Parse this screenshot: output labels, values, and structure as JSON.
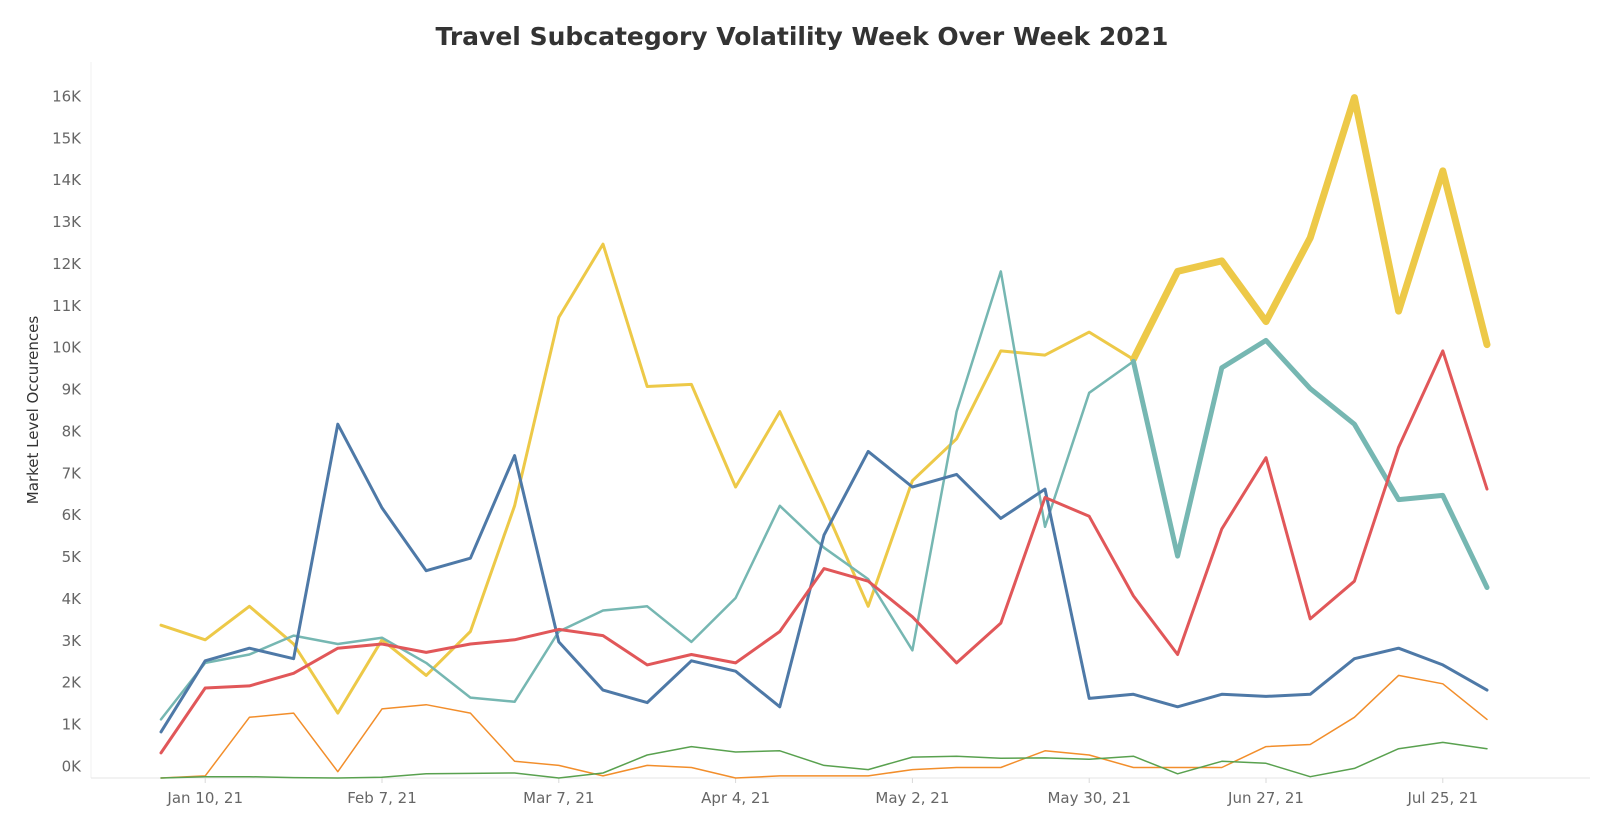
{
  "chart_data": {
    "type": "line",
    "title": "Travel Subcategory Volatility Week Over Week 2021",
    "xlabel": "",
    "ylabel": "Market Level Occurences",
    "ylim": [
      -300,
      16800
    ],
    "yticks": [
      0,
      1000,
      2000,
      3000,
      4000,
      5000,
      6000,
      7000,
      8000,
      9000,
      10000,
      11000,
      12000,
      13000,
      14000,
      15000,
      16000
    ],
    "ytick_labels": [
      "0K",
      "1K",
      "2K",
      "3K",
      "4K",
      "5K",
      "6K",
      "7K",
      "8K",
      "9K",
      "10K",
      "11K",
      "12K",
      "13K",
      "14K",
      "15K",
      "16K"
    ],
    "xticks": [
      "2021-01-10",
      "2021-02-07",
      "2021-03-07",
      "2021-04-04",
      "2021-05-02",
      "2021-05-30",
      "2021-06-27",
      "2021-07-25"
    ],
    "xtick_labels": [
      "Jan 10, 21",
      "Feb 7, 21",
      "Mar 7, 21",
      "Apr 4, 21",
      "May 2, 21",
      "May 30, 21",
      "Jun 27, 21",
      "Jul 25, 21"
    ],
    "x": [
      "2021-01-03",
      "2021-01-10",
      "2021-01-17",
      "2021-01-24",
      "2021-01-31",
      "2021-02-07",
      "2021-02-14",
      "2021-02-21",
      "2021-02-28",
      "2021-03-07",
      "2021-03-14",
      "2021-03-21",
      "2021-03-28",
      "2021-04-04",
      "2021-04-11",
      "2021-04-18",
      "2021-04-25",
      "2021-05-02",
      "2021-05-09",
      "2021-05-16",
      "2021-05-23",
      "2021-05-30",
      "2021-06-06",
      "2021-06-13",
      "2021-06-20",
      "2021-06-27",
      "2021-07-04",
      "2021-07-11",
      "2021-07-18",
      "2021-07-25",
      "2021-08-01"
    ],
    "grid": false,
    "legend": "none",
    "series": [
      {
        "color": "#edc948",
        "line_width": 3,
        "values": [
          3350,
          3000,
          3800,
          2900,
          1250,
          3000,
          2150,
          3200,
          6200,
          10700,
          12450,
          9050,
          9100,
          6650,
          8450,
          6200,
          3800,
          6800,
          7800,
          9900,
          9800,
          10350,
          9700,
          null,
          null,
          null,
          null,
          null,
          null,
          null,
          null
        ]
      },
      {
        "color": "#edc948",
        "line_width": 7,
        "values": [
          null,
          null,
          null,
          null,
          null,
          null,
          null,
          null,
          null,
          null,
          null,
          null,
          null,
          null,
          null,
          null,
          null,
          null,
          null,
          null,
          null,
          null,
          9700,
          11800,
          12050,
          10600,
          12600,
          15950,
          10850,
          14200,
          10050
        ]
      },
      {
        "color": "#76b7b2",
        "line_width": 2.5,
        "values": [
          1100,
          2450,
          2650,
          3100,
          2900,
          3050,
          2450,
          1620,
          1520,
          3200,
          3700,
          3800,
          2950,
          4000,
          6200,
          5200,
          4450,
          2750,
          8450,
          11800,
          5700,
          8900,
          9650,
          null,
          null,
          null,
          null,
          null,
          null,
          null,
          null
        ]
      },
      {
        "color": "#76b7b2",
        "line_width": 5,
        "values": [
          null,
          null,
          null,
          null,
          null,
          null,
          null,
          null,
          null,
          null,
          null,
          null,
          null,
          null,
          null,
          null,
          null,
          null,
          null,
          null,
          null,
          null,
          9650,
          5000,
          9500,
          10150,
          9000,
          8150,
          6350,
          6450,
          4250
        ]
      },
      {
        "color": "#4e79a7",
        "line_width": 3,
        "values": [
          800,
          2500,
          2800,
          2550,
          8150,
          6150,
          4650,
          4950,
          7400,
          2950,
          1800,
          1500,
          2500,
          2250,
          1400,
          5500,
          7500,
          6650,
          6950,
          5900,
          6600,
          1600,
          1700,
          1400,
          1700,
          1650,
          1700,
          2550,
          2800,
          2400,
          1800
        ]
      },
      {
        "color": "#e15759",
        "line_width": 3,
        "values": [
          300,
          1850,
          1900,
          2200,
          2800,
          2900,
          2700,
          2900,
          3000,
          3250,
          3100,
          2400,
          2650,
          2450,
          3200,
          4700,
          4400,
          3550,
          2450,
          3400,
          6400,
          5950,
          4050,
          2650,
          5650,
          7350,
          3500,
          4400,
          7600,
          9900,
          6600
        ]
      },
      {
        "color": "#f28e2b",
        "line_width": 1.5,
        "values": [
          -300,
          -250,
          1150,
          1250,
          -150,
          1350,
          1450,
          1250,
          100,
          0,
          -250,
          0,
          -50,
          -300,
          -250,
          -250,
          -250,
          -100,
          -50,
          -50,
          350,
          250,
          -50,
          -50,
          -50,
          450,
          500,
          1150,
          2150,
          1950,
          1100
        ]
      },
      {
        "color": "#59a14f",
        "line_width": 1.5,
        "values": [
          -300,
          -270,
          -270,
          -290,
          -300,
          -280,
          -200,
          -190,
          -180,
          -300,
          -180,
          250,
          450,
          320,
          350,
          0,
          -100,
          200,
          220,
          170,
          180,
          150,
          220,
          -200,
          100,
          50,
          -270,
          -70,
          400,
          550,
          400
        ]
      }
    ]
  }
}
